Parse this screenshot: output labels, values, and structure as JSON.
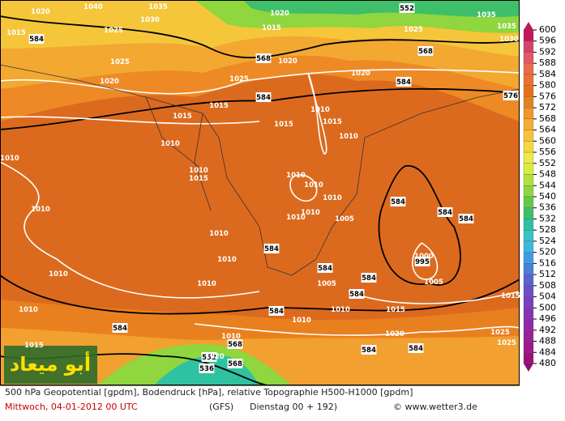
{
  "map": {
    "contour_labels": [
      "1040",
      "1035",
      "1030",
      "1025",
      "1020",
      "1015",
      "584",
      "1035",
      "1020",
      "1015",
      "1025",
      "552",
      "1025",
      "568",
      "1020",
      "1035",
      "1030",
      "568",
      "1025",
      "1020",
      "1015",
      "584",
      "1020",
      "584",
      "1015",
      "1010",
      "1015",
      "1015",
      "1010",
      "1010",
      "1010",
      "1010",
      "1015",
      "1010",
      "1010",
      "1010",
      "1010",
      "1010",
      "584",
      "584",
      "584",
      "584",
      "1010",
      "1010",
      "1005",
      "1000",
      "995",
      "1005",
      "1005",
      "584",
      "584",
      "1010",
      "1010",
      "1010",
      "1015",
      "584",
      "1010",
      "584",
      "1010",
      "568",
      "552",
      "536",
      "584",
      "584",
      "1015",
      "1020",
      "1025",
      "568",
      "1015",
      "1025",
      "1020",
      "584",
      "576",
      "1010",
      "1010"
    ],
    "colorbar": {
      "ticks": [
        600,
        596,
        592,
        588,
        584,
        580,
        576,
        572,
        568,
        564,
        560,
        556,
        552,
        548,
        544,
        540,
        536,
        532,
        528,
        524,
        520,
        516,
        512,
        508,
        504,
        500,
        496,
        492,
        488,
        484,
        480
      ],
      "colors": [
        "#c2185b",
        "#d8406e",
        "#e45866",
        "#ec6a4c",
        "#ec7030",
        "#e4701e",
        "#e8801f",
        "#f0962a",
        "#f4ad33",
        "#f6c33a",
        "#f4d83f",
        "#f2ea44",
        "#d8ec3c",
        "#b2e13a",
        "#8fd63f",
        "#64c94a",
        "#3fbf6a",
        "#2fc2a0",
        "#35c4c8",
        "#3bb8e0",
        "#3e9de0",
        "#4a7fd8",
        "#5a63cf",
        "#6a4fc6",
        "#7a3fbf",
        "#8733b3",
        "#9228a8",
        "#9a2099",
        "#9c198a",
        "#99137a",
        "#8f0e6c"
      ]
    },
    "watermark": "أبو ميعاد"
  },
  "footer": {
    "line1": "500 hPa Geopotential [gpdm], Bodendruck [hPa], relative Topographie H500-H1000 [gpdm]",
    "date": "Mittwoch, 04-01-2012   00 UTC",
    "model": "(GFS)",
    "forecast": "Dienstag 00 + 192)",
    "copyright": "© www.wetter3.de"
  }
}
